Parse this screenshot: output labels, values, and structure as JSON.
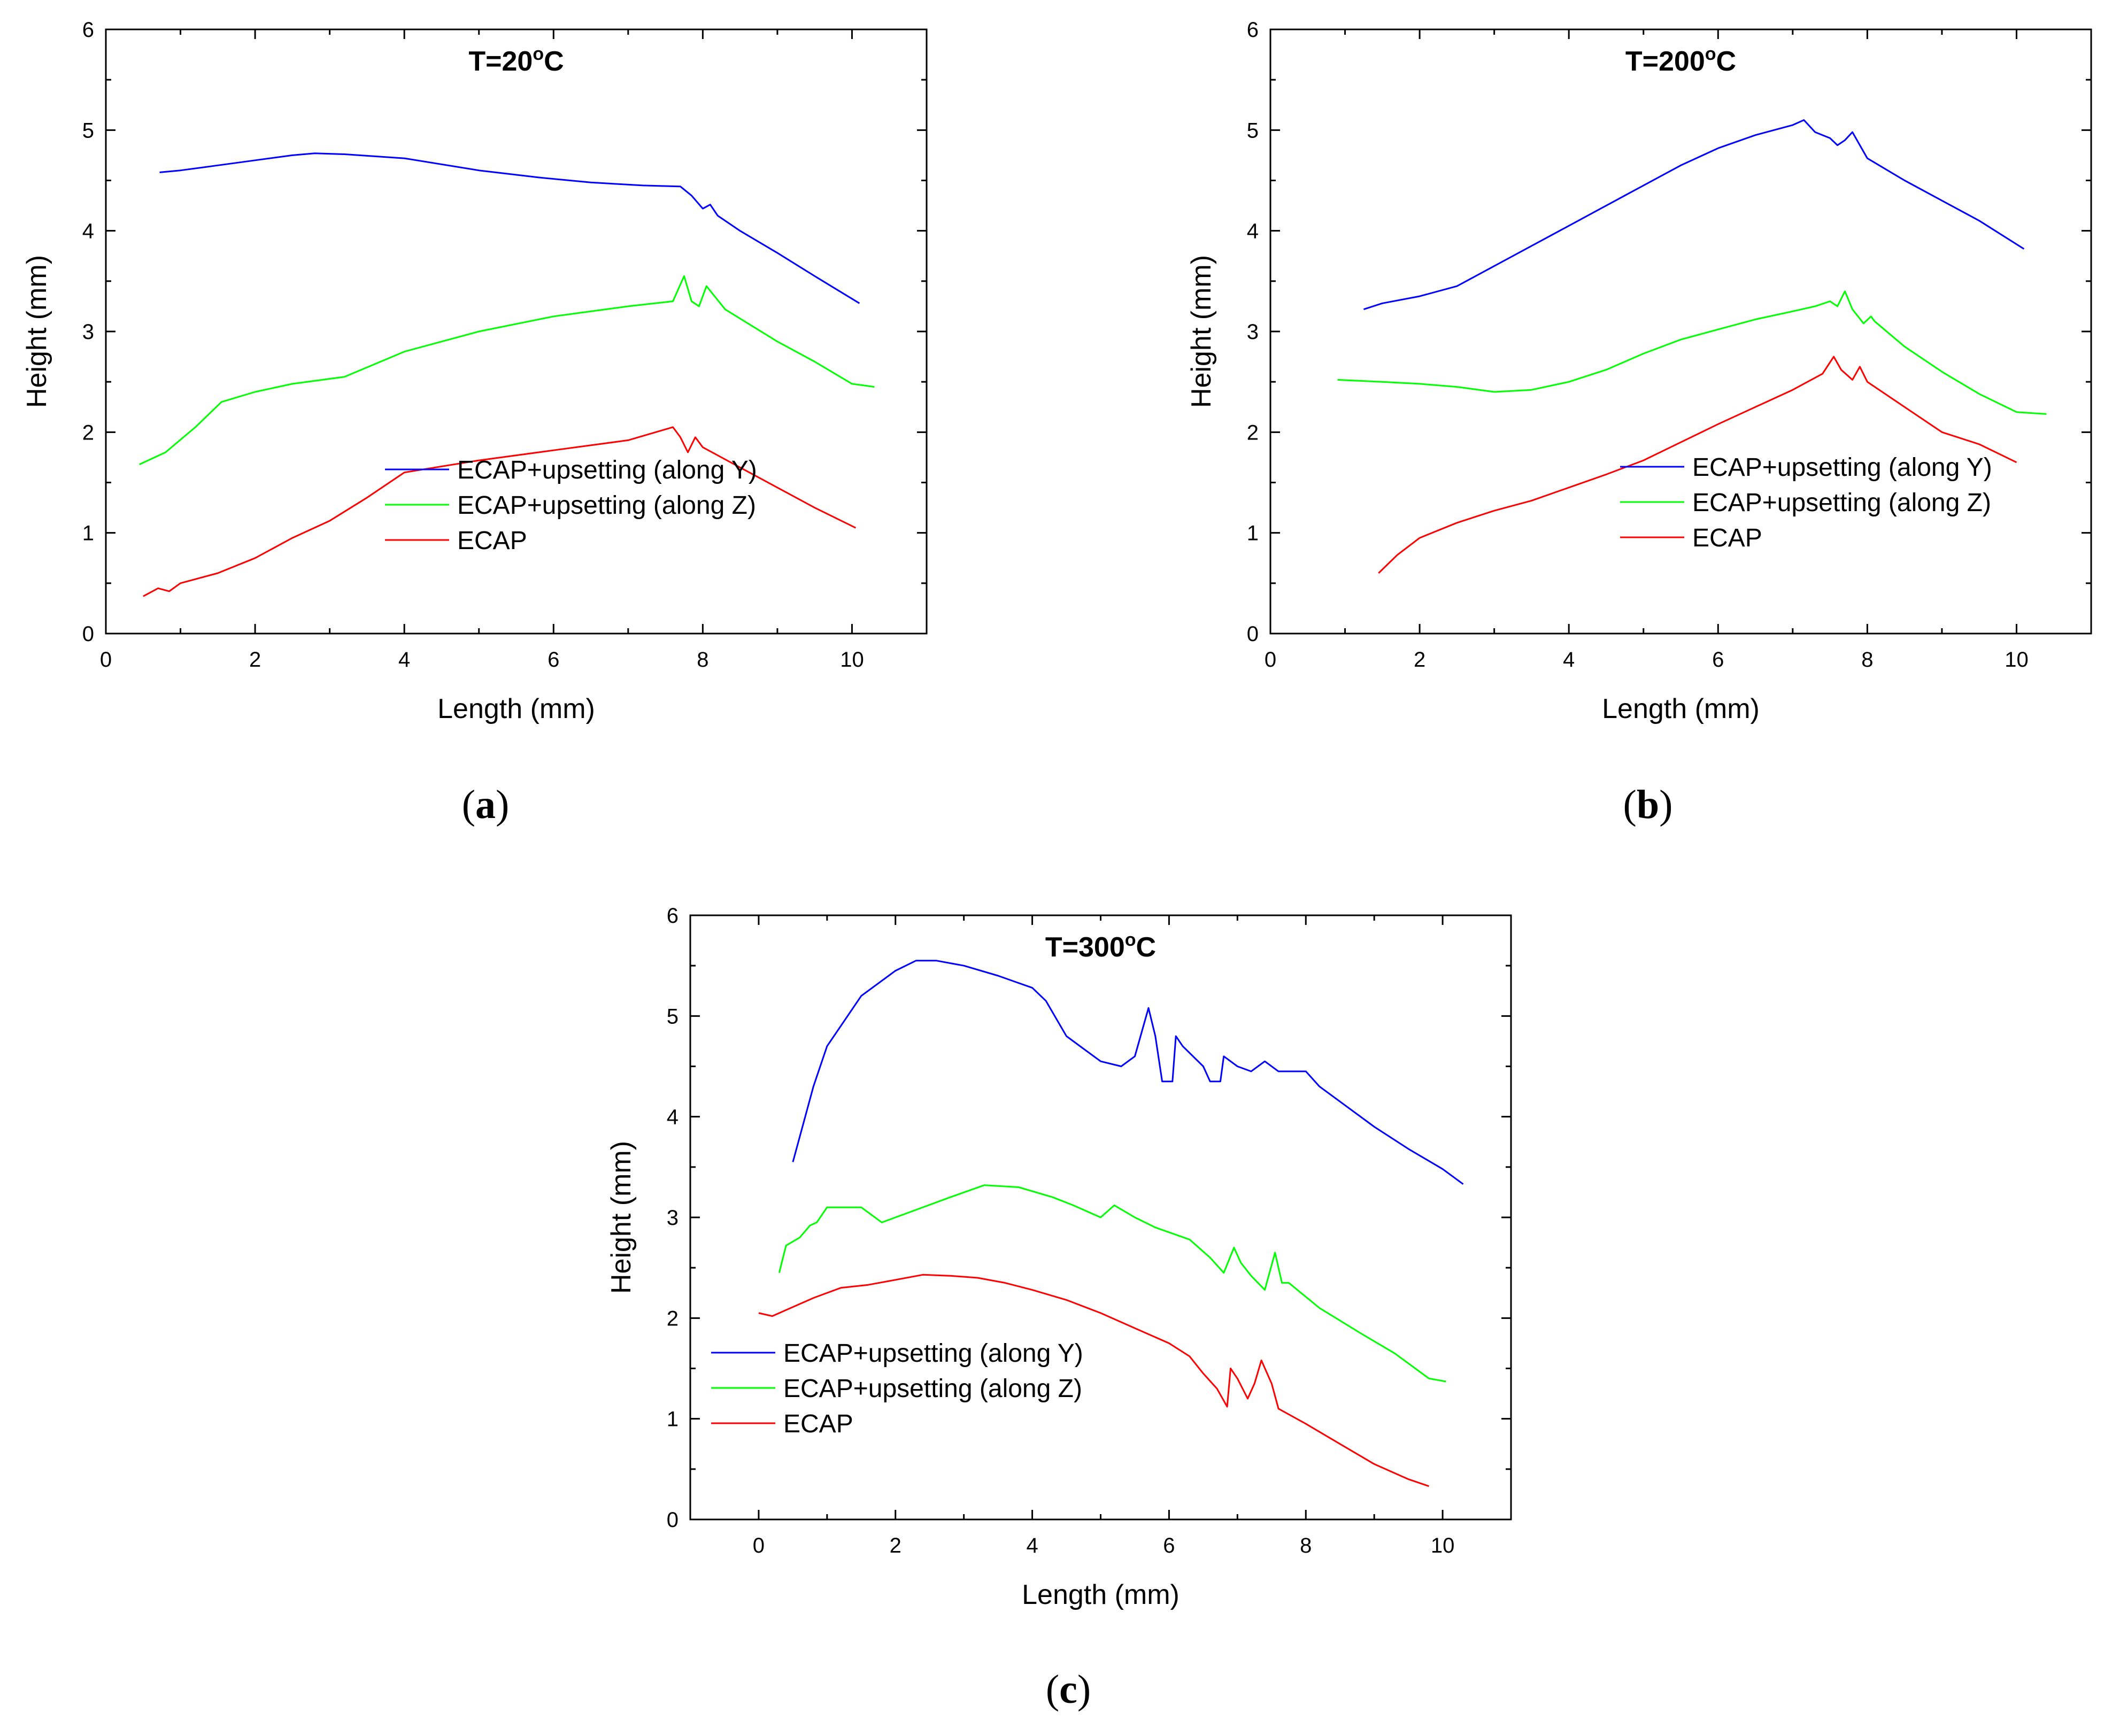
{
  "chart_data": [
    {
      "type": "line",
      "title": "T=20",
      "title_superscript": "o",
      "title_unit": "C",
      "caption_open": "(",
      "caption_letter": "a",
      "caption_close": ")",
      "xlabel": "Length (mm)",
      "ylabel": "Height (mm)",
      "xlim": [
        0,
        11
      ],
      "ylim": [
        0,
        6
      ],
      "xticks": [
        0,
        2,
        4,
        6,
        8,
        10
      ],
      "yticks": [
        0,
        1,
        2,
        3,
        4,
        5,
        6
      ],
      "legend_position": "bottom-right",
      "series": [
        {
          "name": "ECAP+upsetting (along Y)",
          "color": "#0000ff",
          "x": [
            0.72,
            1.0,
            1.5,
            2.0,
            2.5,
            2.8,
            3.2,
            4.0,
            5.0,
            5.8,
            6.5,
            7.2,
            7.7,
            7.85,
            8.0,
            8.1,
            8.2,
            8.5,
            9.0,
            9.5,
            10.1
          ],
          "y": [
            4.58,
            4.6,
            4.65,
            4.7,
            4.75,
            4.77,
            4.76,
            4.72,
            4.6,
            4.53,
            4.48,
            4.45,
            4.44,
            4.35,
            4.22,
            4.26,
            4.15,
            4.0,
            3.78,
            3.55,
            3.28
          ]
        },
        {
          "name": "ECAP+upsetting (along Z)",
          "color": "#00ff00",
          "x": [
            0.45,
            0.8,
            1.2,
            1.55,
            2.0,
            2.5,
            3.2,
            4.0,
            5.0,
            6.0,
            7.0,
            7.6,
            7.75,
            7.85,
            7.95,
            8.05,
            8.3,
            9.0,
            9.5,
            10.0,
            10.3
          ],
          "y": [
            1.68,
            1.8,
            2.05,
            2.3,
            2.4,
            2.48,
            2.55,
            2.8,
            3.0,
            3.15,
            3.25,
            3.3,
            3.55,
            3.3,
            3.25,
            3.45,
            3.22,
            2.9,
            2.7,
            2.48,
            2.45
          ]
        },
        {
          "name": "ECAP",
          "color": "#ff0000",
          "x": [
            0.5,
            0.7,
            0.85,
            1.0,
            1.5,
            2.0,
            2.5,
            3.0,
            3.5,
            4.0,
            5.0,
            6.0,
            7.0,
            7.6,
            7.7,
            7.8,
            7.9,
            8.0,
            8.5,
            9.0,
            9.5,
            10.05
          ],
          "y": [
            0.37,
            0.45,
            0.42,
            0.5,
            0.6,
            0.75,
            0.95,
            1.12,
            1.35,
            1.6,
            1.72,
            1.82,
            1.92,
            2.05,
            1.95,
            1.8,
            1.95,
            1.85,
            1.65,
            1.45,
            1.25,
            1.05
          ]
        }
      ]
    },
    {
      "type": "line",
      "title": "T=200",
      "title_superscript": "o",
      "title_unit": "C",
      "caption_open": "(",
      "caption_letter": "b",
      "caption_close": ")",
      "xlabel": "Length (mm)",
      "ylabel": "Height (mm)",
      "xlim": [
        0,
        11
      ],
      "ylim": [
        0,
        6
      ],
      "xticks": [
        0,
        2,
        4,
        6,
        8,
        10
      ],
      "yticks": [
        0,
        1,
        2,
        3,
        4,
        5,
        6
      ],
      "legend_position": "bottom-right",
      "series": [
        {
          "name": "ECAP+upsetting (along Y)",
          "color": "#0000ff",
          "x": [
            1.25,
            1.5,
            2.0,
            2.5,
            3.0,
            3.5,
            4.0,
            4.5,
            5.0,
            5.5,
            6.0,
            6.5,
            7.0,
            7.15,
            7.3,
            7.5,
            7.6,
            7.7,
            7.8,
            8.0,
            8.5,
            9.0,
            9.5,
            10.1
          ],
          "y": [
            3.22,
            3.28,
            3.35,
            3.45,
            3.65,
            3.85,
            4.05,
            4.25,
            4.45,
            4.65,
            4.82,
            4.95,
            5.05,
            5.1,
            4.98,
            4.92,
            4.85,
            4.9,
            4.98,
            4.72,
            4.5,
            4.3,
            4.1,
            3.82
          ]
        },
        {
          "name": "ECAP+upsetting (along Z)",
          "color": "#00ff00",
          "x": [
            0.9,
            1.5,
            2.0,
            2.5,
            3.0,
            3.5,
            4.0,
            4.5,
            5.0,
            5.5,
            6.0,
            6.5,
            7.0,
            7.3,
            7.5,
            7.6,
            7.7,
            7.8,
            7.95,
            8.05,
            8.1,
            8.5,
            9.0,
            9.5,
            10.0,
            10.4
          ],
          "y": [
            2.52,
            2.5,
            2.48,
            2.45,
            2.4,
            2.42,
            2.5,
            2.62,
            2.78,
            2.92,
            3.02,
            3.12,
            3.2,
            3.25,
            3.3,
            3.25,
            3.4,
            3.22,
            3.08,
            3.15,
            3.1,
            2.85,
            2.6,
            2.38,
            2.2,
            2.18
          ]
        },
        {
          "name": "ECAP",
          "color": "#ff0000",
          "x": [
            1.45,
            1.7,
            2.0,
            2.5,
            3.0,
            3.5,
            4.0,
            4.5,
            5.0,
            5.5,
            6.0,
            6.5,
            7.0,
            7.4,
            7.55,
            7.65,
            7.8,
            7.9,
            8.0,
            8.5,
            9.0,
            9.5,
            10.0
          ],
          "y": [
            0.6,
            0.78,
            0.95,
            1.1,
            1.22,
            1.32,
            1.45,
            1.58,
            1.72,
            1.9,
            2.08,
            2.25,
            2.42,
            2.58,
            2.75,
            2.62,
            2.52,
            2.65,
            2.5,
            2.25,
            2.0,
            1.88,
            1.7
          ]
        }
      ]
    },
    {
      "type": "line",
      "title": "T=300",
      "title_superscript": "o",
      "title_unit": "C",
      "caption_open": "(",
      "caption_letter": "c",
      "caption_close": ")",
      "xlabel": "Length (mm)",
      "ylabel": "Height (mm)",
      "xlim": [
        -1,
        11
      ],
      "ylim": [
        0,
        6
      ],
      "xticks": [
        0,
        2,
        4,
        6,
        8,
        10
      ],
      "yticks": [
        0,
        1,
        2,
        3,
        4,
        5,
        6
      ],
      "legend_position": "bottom-left",
      "series": [
        {
          "name": "ECAP+upsetting (along Y)",
          "color": "#0000ff",
          "x": [
            0.5,
            0.8,
            1.0,
            1.5,
            2.0,
            2.3,
            2.6,
            3.0,
            3.5,
            4.0,
            4.2,
            4.5,
            5.0,
            5.3,
            5.5,
            5.7,
            5.8,
            5.9,
            6.05,
            6.1,
            6.2,
            6.5,
            6.6,
            6.75,
            6.8,
            7.0,
            7.2,
            7.4,
            7.6,
            7.8,
            8.0,
            8.2,
            8.5,
            9.0,
            9.5,
            10.0,
            10.3
          ],
          "y": [
            3.55,
            4.3,
            4.7,
            5.2,
            5.45,
            5.55,
            5.55,
            5.5,
            5.4,
            5.28,
            5.15,
            4.8,
            4.55,
            4.5,
            4.6,
            5.08,
            4.8,
            4.35,
            4.35,
            4.8,
            4.7,
            4.5,
            4.35,
            4.35,
            4.6,
            4.5,
            4.45,
            4.55,
            4.45,
            4.45,
            4.45,
            4.3,
            4.15,
            3.9,
            3.68,
            3.48,
            3.33
          ]
        },
        {
          "name": "ECAP+upsetting (along Z)",
          "color": "#00ff00",
          "x": [
            0.3,
            0.4,
            0.6,
            0.75,
            0.85,
            1.0,
            1.5,
            1.8,
            2.2,
            2.8,
            3.3,
            3.8,
            4.3,
            4.6,
            5.0,
            5.2,
            5.5,
            5.8,
            6.3,
            6.6,
            6.8,
            6.95,
            7.05,
            7.2,
            7.4,
            7.55,
            7.65,
            7.75,
            8.2,
            8.8,
            9.3,
            9.8,
            10.05
          ],
          "y": [
            2.45,
            2.72,
            2.8,
            2.92,
            2.95,
            3.1,
            3.1,
            2.95,
            3.05,
            3.2,
            3.32,
            3.3,
            3.2,
            3.12,
            3.0,
            3.12,
            3.0,
            2.9,
            2.78,
            2.6,
            2.45,
            2.7,
            2.55,
            2.42,
            2.28,
            2.65,
            2.35,
            2.35,
            2.1,
            1.85,
            1.65,
            1.4,
            1.37
          ]
        },
        {
          "name": "ECAP",
          "color": "#ff0000",
          "x": [
            0.0,
            0.2,
            0.4,
            0.8,
            1.2,
            1.6,
            2.0,
            2.4,
            2.8,
            3.2,
            3.6,
            4.0,
            4.5,
            5.0,
            5.5,
            6.0,
            6.3,
            6.5,
            6.7,
            6.85,
            6.9,
            7.0,
            7.15,
            7.25,
            7.35,
            7.5,
            7.6,
            8.0,
            8.5,
            9.0,
            9.5,
            9.8
          ],
          "y": [
            2.05,
            2.02,
            2.08,
            2.2,
            2.3,
            2.33,
            2.38,
            2.43,
            2.42,
            2.4,
            2.35,
            2.28,
            2.18,
            2.05,
            1.9,
            1.75,
            1.62,
            1.45,
            1.3,
            1.12,
            1.5,
            1.4,
            1.2,
            1.35,
            1.58,
            1.35,
            1.1,
            0.95,
            0.75,
            0.55,
            0.4,
            0.33
          ]
        }
      ]
    }
  ]
}
